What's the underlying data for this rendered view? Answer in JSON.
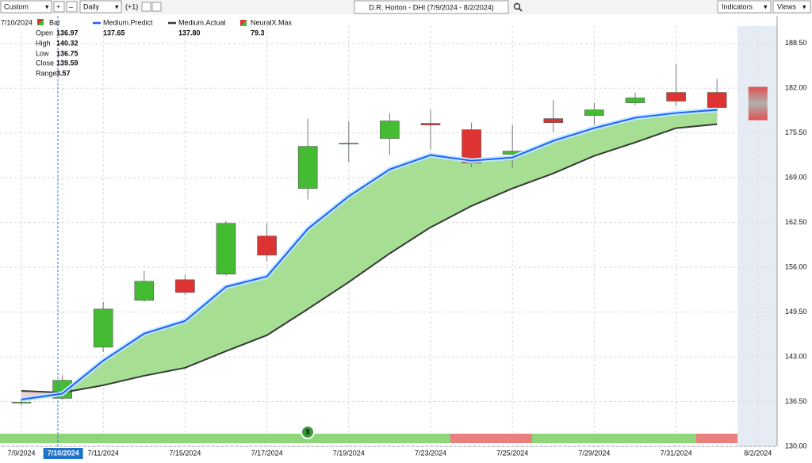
{
  "toolbar": {
    "range": "Custom",
    "interval": "Daily",
    "offset": "(+1)",
    "indicators": "Indicators",
    "views": "Views"
  },
  "crosshair": {
    "date": "7/10/2024",
    "bar": "Bar",
    "open_label": "Open",
    "open": 136.97,
    "high_label": "High",
    "high": 140.32,
    "low_label": "Low",
    "low": 136.75,
    "close_label": "Close",
    "close": 139.59,
    "range_label": "Range",
    "range": 3.57,
    "predict": 137.65,
    "actual": {
      "value": 137.8,
      "label": "137.80"
    },
    "neuralx_name": "NeuralX.Max",
    "neuralx": 79.3
  },
  "chart_data": {
    "type": "candlestick",
    "title": "D.R. Horton - DHI (7/9/2024 - 8/2/2024)",
    "categories": [
      "7/9/2024",
      "7/10/2024",
      "7/11/2024",
      null,
      "7/15/2024",
      null,
      "7/17/2024",
      null,
      "7/19/2024",
      null,
      "7/23/2024",
      null,
      "7/25/2024",
      null,
      "7/29/2024",
      null,
      "7/31/2024",
      null,
      "8/2/2024"
    ],
    "open": [
      136.35,
      136.97,
      144.4,
      151.2,
      154.19,
      155.0,
      160.53,
      167.44,
      173.95,
      174.7,
      176.89,
      175.97,
      172.4,
      177.58,
      178.04,
      179.88,
      181.38,
      181.38,
      null
    ],
    "high": [
      136.9,
      140.32,
      150.97,
      155.46,
      154.88,
      162.72,
      162.37,
      177.58,
      177.24,
      178.39,
      178.85,
      177.0,
      176.66,
      180.23,
      179.88,
      181.38,
      185.53,
      183.34,
      null
    ],
    "low": [
      135.9,
      136.75,
      143.71,
      150.97,
      152.0,
      154.77,
      156.84,
      165.83,
      171.24,
      172.28,
      173.09,
      170.55,
      170.44,
      175.62,
      176.66,
      179.54,
      179.42,
      178.5,
      null
    ],
    "close": [
      136.4,
      139.59,
      149.93,
      153.96,
      152.35,
      162.37,
      157.76,
      173.55,
      174.0,
      177.24,
      176.66,
      171.13,
      172.86,
      177.0,
      178.85,
      180.58,
      180.12,
      179.19,
      null
    ],
    "forecast": {
      "high": 182.19,
      "low": 177.35
    },
    "series": [
      {
        "name": "Medium.Predict",
        "color": "#1f5fff",
        "values": [
          136.8,
          137.65,
          142.44,
          146.36,
          148.2,
          153.16,
          154.65,
          161.57,
          166.29,
          170.2,
          172.28,
          171.47,
          171.93,
          174.35,
          176.2,
          177.7,
          178.39,
          178.85,
          null
        ]
      },
      {
        "name": "Medium.Actual",
        "color": "#333a33",
        "values": [
          138.06,
          137.8,
          138.87,
          140.25,
          141.4,
          143.82,
          146.13,
          149.93,
          153.85,
          158.0,
          161.8,
          164.9,
          167.44,
          169.63,
          172.17,
          174.12,
          176.2,
          176.77,
          null
        ]
      }
    ],
    "ylim": [
      130,
      191
    ],
    "yticks": [
      {
        "value": 130,
        "label": "130.00"
      },
      {
        "value": 136.5,
        "label": "136.50"
      },
      {
        "value": 143,
        "label": "143.00"
      },
      {
        "value": 149.5,
        "label": "149.50"
      },
      {
        "value": 156,
        "label": "156.00"
      },
      {
        "value": 162.5,
        "label": "162.50"
      },
      {
        "value": 169,
        "label": "169.00"
      },
      {
        "value": 175.5,
        "label": "175.50"
      },
      {
        "value": 182,
        "label": "182.00"
      },
      {
        "value": 188.5,
        "label": "188.50"
      }
    ],
    "grid": true,
    "up_color": "#44bb33",
    "down_color": "#dd3333"
  }
}
